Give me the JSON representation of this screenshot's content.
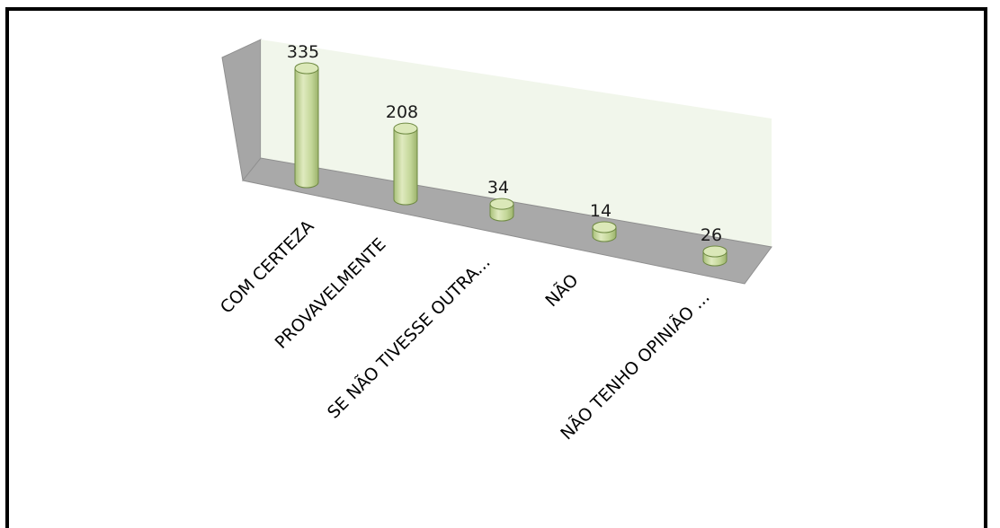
{
  "chart_data": {
    "type": "bar",
    "style": "3d-cylinder",
    "categories": [
      "COM CERTEZA",
      "PROVAVELMENTE",
      "SE NÃO TIVESSE OUTRA...",
      "NÃO",
      "NÃO TENHO OPINIÃO ..."
    ],
    "values": [
      335,
      208,
      34,
      14,
      26
    ],
    "data_labels": [
      "335",
      "208",
      "34",
      "14",
      "26"
    ],
    "title": "",
    "xlabel": "",
    "ylabel": "",
    "ylim": [
      0,
      335
    ],
    "grid": false,
    "legend": "none",
    "colors": {
      "bar_body": "#c9dba0",
      "bar_top": "#dbe8b8",
      "bar_edge": "#6f8a43",
      "back_wall": "#eef4e8",
      "side_wall": "#a6a6a6",
      "floor": "#a9a9a9",
      "frame": "#000000"
    }
  }
}
